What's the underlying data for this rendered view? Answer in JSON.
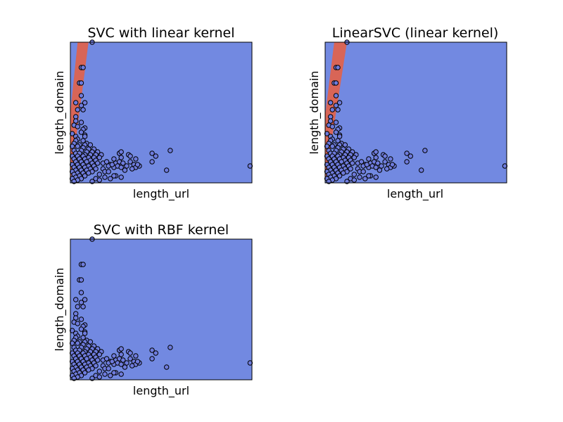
{
  "chart_data": [
    {
      "type": "scatter",
      "title": "SVC with linear kernel",
      "xlabel": "length_url",
      "ylabel": "length_domain",
      "background_color": "#7289E1",
      "region_color": "#D86557",
      "point_color": "#6E7BDC",
      "point_edge_color": "#000000",
      "region": [
        [
          0,
          0
        ],
        [
          0.1,
          1
        ],
        [
          0.04,
          1
        ],
        [
          0,
          0.5
        ]
      ]
    },
    {
      "type": "scatter",
      "title": "LinearSVC (linear kernel)",
      "xlabel": "length_url",
      "ylabel": "length_domain",
      "background_color": "#7289E1",
      "region_color": "#D86557",
      "point_color": "#6E7BDC",
      "point_edge_color": "#000000",
      "region": [
        [
          0,
          0
        ],
        [
          0.12,
          1
        ],
        [
          0.05,
          1
        ],
        [
          0,
          0.48
        ]
      ]
    },
    {
      "type": "scatter",
      "title": "SVC with RBF kernel",
      "xlabel": "length_url",
      "ylabel": "length_domain",
      "background_color": "#7289E1",
      "region_color": "#D86557",
      "point_color": "#6E7BDC",
      "point_edge_color": "#000000",
      "region": []
    }
  ],
  "points": [
    [
      0.12,
      1.0
    ],
    [
      0.06,
      0.82
    ],
    [
      0.07,
      0.82
    ],
    [
      0.05,
      0.71
    ],
    [
      0.06,
      0.71
    ],
    [
      0.06,
      0.62
    ],
    [
      0.08,
      0.57
    ],
    [
      0.03,
      0.57
    ],
    [
      0.06,
      0.55
    ],
    [
      0.04,
      0.52
    ],
    [
      0.07,
      0.52
    ],
    [
      0.03,
      0.47
    ],
    [
      0.03,
      0.44
    ],
    [
      0.06,
      0.43
    ],
    [
      0.02,
      0.41
    ],
    [
      0.04,
      0.4
    ],
    [
      0.08,
      0.39
    ],
    [
      0.07,
      0.38
    ],
    [
      0.06,
      0.36
    ],
    [
      0.01,
      0.35
    ],
    [
      0.08,
      0.34
    ],
    [
      0.03,
      0.33
    ],
    [
      0.08,
      0.33
    ],
    [
      0.04,
      0.31
    ],
    [
      0.03,
      0.3
    ],
    [
      0.07,
      0.3
    ],
    [
      0.09,
      0.28
    ],
    [
      0.02,
      0.28
    ],
    [
      0.05,
      0.27
    ],
    [
      0.08,
      0.27
    ],
    [
      0.11,
      0.27
    ],
    [
      0.01,
      0.26
    ],
    [
      0.04,
      0.26
    ],
    [
      0.07,
      0.25
    ],
    [
      0.1,
      0.24
    ],
    [
      0.13,
      0.24
    ],
    [
      0.02,
      0.23
    ],
    [
      0.06,
      0.23
    ],
    [
      0.09,
      0.22
    ],
    [
      0.12,
      0.22
    ],
    [
      0.15,
      0.22
    ],
    [
      0.03,
      0.21
    ],
    [
      0.05,
      0.21
    ],
    [
      0.08,
      0.2
    ],
    [
      0.11,
      0.2
    ],
    [
      0.14,
      0.2
    ],
    [
      0.17,
      0.2
    ],
    [
      0.01,
      0.19
    ],
    [
      0.04,
      0.19
    ],
    [
      0.07,
      0.19
    ],
    [
      0.1,
      0.18
    ],
    [
      0.13,
      0.18
    ],
    [
      0.16,
      0.18
    ],
    [
      0.02,
      0.17
    ],
    [
      0.05,
      0.17
    ],
    [
      0.08,
      0.17
    ],
    [
      0.11,
      0.16
    ],
    [
      0.14,
      0.16
    ],
    [
      0.03,
      0.15
    ],
    [
      0.06,
      0.15
    ],
    [
      0.09,
      0.15
    ],
    [
      0.12,
      0.14
    ],
    [
      0.15,
      0.14
    ],
    [
      0.18,
      0.14
    ],
    [
      0.01,
      0.13
    ],
    [
      0.04,
      0.13
    ],
    [
      0.07,
      0.13
    ],
    [
      0.1,
      0.12
    ],
    [
      0.13,
      0.12
    ],
    [
      0.02,
      0.11
    ],
    [
      0.05,
      0.11
    ],
    [
      0.08,
      0.11
    ],
    [
      0.11,
      0.1
    ],
    [
      0.14,
      0.1
    ],
    [
      0.03,
      0.09
    ],
    [
      0.06,
      0.09
    ],
    [
      0.09,
      0.09
    ],
    [
      0.12,
      0.08
    ],
    [
      0.01,
      0.08
    ],
    [
      0.04,
      0.07
    ],
    [
      0.07,
      0.07
    ],
    [
      0.1,
      0.07
    ],
    [
      0.02,
      0.06
    ],
    [
      0.05,
      0.05
    ],
    [
      0.08,
      0.05
    ],
    [
      0.03,
      0.04
    ],
    [
      0.06,
      0.03
    ],
    [
      0.01,
      0.03
    ],
    [
      0.04,
      0.02
    ],
    [
      0.02,
      0.01
    ],
    [
      0.2,
      0.15
    ],
    [
      0.22,
      0.13
    ],
    [
      0.25,
      0.14
    ],
    [
      0.21,
      0.12
    ],
    [
      0.27,
      0.15
    ],
    [
      0.29,
      0.14
    ],
    [
      0.24,
      0.11
    ],
    [
      0.18,
      0.1
    ],
    [
      0.26,
      0.12
    ],
    [
      0.16,
      0.06
    ],
    [
      0.19,
      0.08
    ],
    [
      0.28,
      0.11
    ],
    [
      0.31,
      0.12
    ],
    [
      0.35,
      0.13
    ],
    [
      0.33,
      0.15
    ],
    [
      0.36,
      0.11
    ],
    [
      0.38,
      0.12
    ],
    [
      0.37,
      0.13
    ],
    [
      0.32,
      0.2
    ],
    [
      0.28,
      0.18
    ],
    [
      0.24,
      0.17
    ],
    [
      0.27,
      0.21
    ],
    [
      0.33,
      0.19
    ],
    [
      0.36,
      0.17
    ],
    [
      0.23,
      0.13
    ],
    [
      0.21,
      0.08
    ],
    [
      0.3,
      0.09
    ],
    [
      0.34,
      0.1
    ],
    [
      0.25,
      0.05
    ],
    [
      0.19,
      0.04
    ],
    [
      0.22,
      0.03
    ],
    [
      0.28,
      0.04
    ],
    [
      0.14,
      0.03
    ],
    [
      0.16,
      0.02
    ],
    [
      0.12,
      0.01
    ],
    [
      0.27,
      0.21
    ],
    [
      0.28,
      0.22
    ],
    [
      0.45,
      0.21
    ],
    [
      0.47,
      0.19
    ],
    [
      0.55,
      0.23
    ],
    [
      0.45,
      0.15
    ],
    [
      0.53,
      0.09
    ],
    [
      0.24,
      0.05
    ],
    [
      0.99,
      0.12
    ]
  ]
}
